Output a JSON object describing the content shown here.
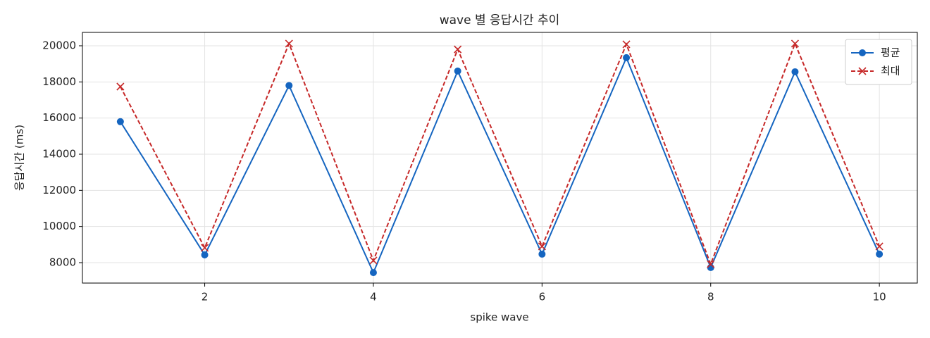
{
  "chart_data": {
    "type": "line",
    "title": "wave 별 응답시간 추이",
    "xlabel": "spike wave",
    "ylabel": "응답시간 (ms)",
    "x": [
      1,
      2,
      3,
      4,
      5,
      6,
      7,
      8,
      9,
      10
    ],
    "series": [
      {
        "name": "평균",
        "color": "#1565c0",
        "marker": "o",
        "linestyle": "solid",
        "values": [
          15800,
          8430,
          17800,
          7450,
          18600,
          8470,
          19340,
          7730,
          18560,
          8470
        ]
      },
      {
        "name": "최대",
        "color": "#c62828",
        "marker": "x",
        "linestyle": "dashed",
        "values": [
          17740,
          8820,
          20120,
          8120,
          19800,
          8900,
          20080,
          7920,
          20120,
          8900
        ]
      }
    ],
    "xlim": [
      0.55,
      10.45
    ],
    "ylim": [
      6870,
      20740
    ],
    "xticks": [
      2,
      4,
      6,
      8,
      10
    ],
    "yticks": [
      8000,
      10000,
      12000,
      14000,
      16000,
      18000,
      20000
    ],
    "grid": true,
    "legend": "upper-right"
  }
}
